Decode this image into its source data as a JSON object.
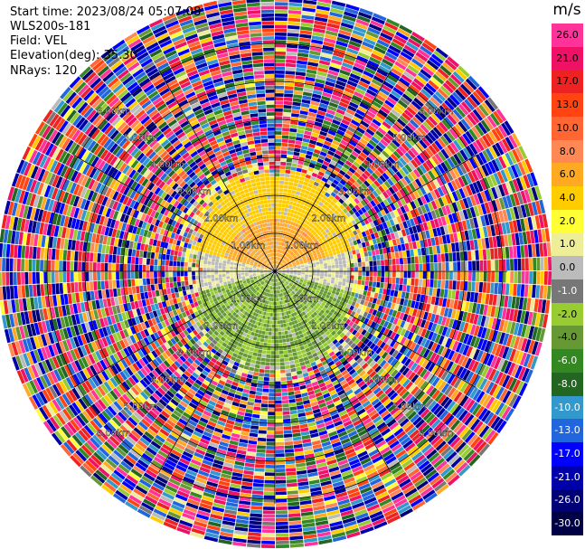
{
  "header": {
    "start_time": "Start time: 2023/08/24 05:07:08",
    "site": "WLS200s-181",
    "field": "Field: VEL",
    "elevation": "Elevation(deg): 35.30",
    "nrays": "NRays: 120"
  },
  "colorbar": {
    "unit": "m/s",
    "ticks": [
      "26.0",
      "21.0",
      "17.0",
      "13.0",
      "10.0",
      "8.0",
      "6.0",
      "4.0",
      "2.0",
      "1.0",
      "0.0",
      "-1.0",
      "-2.0",
      "-4.0",
      "-6.0",
      "-8.0",
      "-10.0",
      "-13.0",
      "-17.0",
      "-21.0",
      "-26.0",
      "-30.0"
    ],
    "colors": [
      "#ff3399",
      "#ee1166",
      "#ee2222",
      "#ff4411",
      "#ff6633",
      "#ff8855",
      "#ffaa22",
      "#ffcc00",
      "#ffff33",
      "#eeee99",
      "#bbbbbb",
      "#777777",
      "#99cc33",
      "#669933",
      "#338822",
      "#226622",
      "#3399cc",
      "#2266dd",
      "#0000ff",
      "#0000aa",
      "#000077",
      "#000044"
    ]
  },
  "chart_data": {
    "type": "heatmap",
    "title": "",
    "projection": "polar (PPI)",
    "field": "VEL",
    "units": "m/s",
    "nrays": 120,
    "range_rings_km": [
      1,
      2,
      3,
      4,
      5,
      6
    ],
    "range_ring_labels": [
      "1.00km",
      "2.00km",
      "3.00km",
      "4.00km",
      "5.00km",
      "6.00km"
    ],
    "azimuth_spokes_deg": [
      0,
      30,
      60,
      90,
      120,
      150,
      180,
      210,
      240,
      270,
      300,
      330
    ],
    "pattern": {
      "north_near_range_m_s": [
        2.0,
        6.0
      ],
      "south_near_range_m_s": [
        -6.0,
        -2.0
      ],
      "east_west_near_range_m_s": [
        -1.0,
        1.0
      ],
      "far_range": "noise (random values across the full color scale)"
    }
  }
}
